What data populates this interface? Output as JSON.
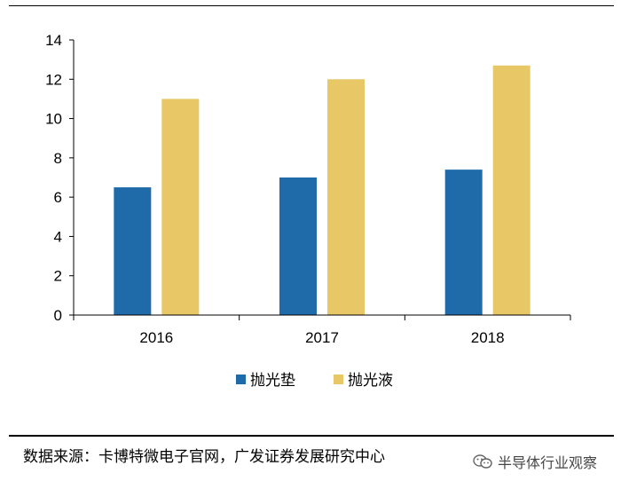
{
  "chart_data": {
    "type": "bar",
    "categories": [
      "2016",
      "2017",
      "2018"
    ],
    "series": [
      {
        "name": "抛光垫",
        "color": "#1f6aa8",
        "values": [
          6.5,
          7.0,
          7.4
        ]
      },
      {
        "name": "抛光液",
        "color": "#e8c766",
        "values": [
          11.0,
          12.0,
          12.7
        ]
      }
    ],
    "ylim": [
      0,
      14
    ],
    "yticks": [
      0,
      2,
      4,
      6,
      8,
      10,
      12,
      14
    ],
    "grid": false,
    "legend": "bottom-center"
  },
  "source_text": "数据来源：卡博特微电子官网，广发证券发展研究中心",
  "watermark_text": "半导体行业观察",
  "watermark_icon": "wechat-icon"
}
